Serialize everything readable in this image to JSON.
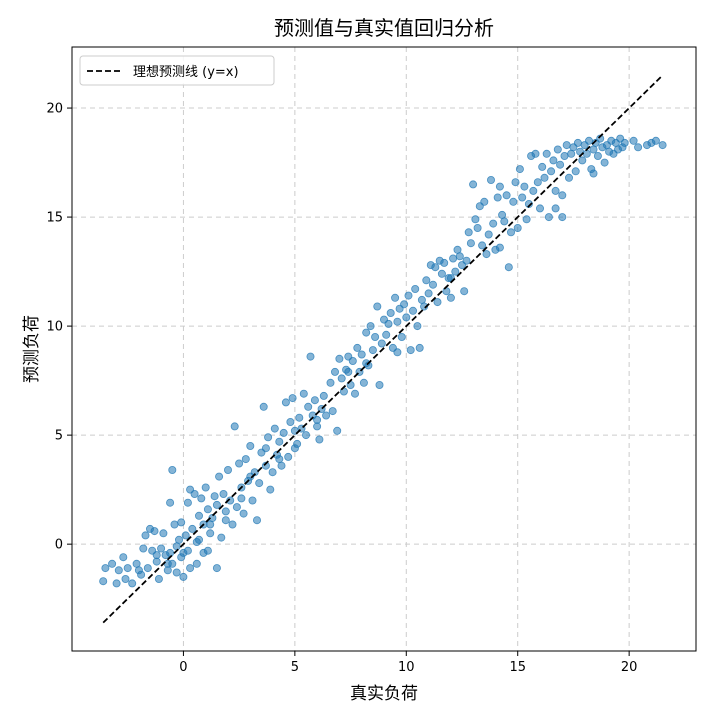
{
  "chart_data": {
    "type": "scatter",
    "title": "预测值与真实值回归分析",
    "xlabel": "真实负荷",
    "ylabel": "预测负荷",
    "xlim": [
      -5,
      23
    ],
    "ylim": [
      -4.9,
      22.8
    ],
    "xticks": [
      0,
      5,
      10,
      15,
      20
    ],
    "yticks": [
      0,
      5,
      10,
      15,
      20
    ],
    "grid": true,
    "legend": {
      "placement": "top-left",
      "label": "理想预测线 (y=x)"
    },
    "colors": {
      "points": "#1f77b4",
      "line": "#000000",
      "grid": "#cccccc"
    },
    "reference_line": {
      "x": [
        -3.6,
        21.5
      ],
      "y": [
        -3.6,
        21.5
      ],
      "style": "dashed"
    },
    "series": [
      {
        "name": "",
        "points": [
          [
            -3.6,
            -1.7
          ],
          [
            -3.5,
            -1.1
          ],
          [
            -3.2,
            -0.9
          ],
          [
            -3.0,
            -1.8
          ],
          [
            -2.9,
            -1.2
          ],
          [
            -2.7,
            -0.6
          ],
          [
            -2.5,
            -1.1
          ],
          [
            -2.3,
            -1.8
          ],
          [
            -2.1,
            -0.9
          ],
          [
            -1.9,
            -1.4
          ],
          [
            -1.8,
            -0.2
          ],
          [
            -1.7,
            0.4
          ],
          [
            -1.6,
            -1.1
          ],
          [
            -1.5,
            0.7
          ],
          [
            -1.4,
            -0.3
          ],
          [
            -1.3,
            0.6
          ],
          [
            -1.2,
            -0.8
          ],
          [
            -1.1,
            -1.6
          ],
          [
            -1.0,
            -0.2
          ],
          [
            -0.9,
            0.5
          ],
          [
            -0.8,
            -0.5
          ],
          [
            -0.7,
            -1.2
          ],
          [
            -0.6,
            -0.4
          ],
          [
            -0.6,
            1.9
          ],
          [
            -0.5,
            -0.9
          ],
          [
            -0.5,
            3.4
          ],
          [
            -0.4,
            0.9
          ],
          [
            -0.3,
            -0.1
          ],
          [
            -0.3,
            -1.3
          ],
          [
            -0.2,
            0.2
          ],
          [
            -0.1,
            -0.6
          ],
          [
            -0.1,
            1.0
          ],
          [
            0.0,
            -1.5
          ],
          [
            0.1,
            0.4
          ],
          [
            0.2,
            -0.3
          ],
          [
            0.2,
            1.9
          ],
          [
            0.3,
            2.5
          ],
          [
            0.3,
            -1.1
          ],
          [
            0.4,
            0.7
          ],
          [
            0.5,
            2.3
          ],
          [
            0.6,
            0.1
          ],
          [
            0.6,
            -0.9
          ],
          [
            0.7,
            1.3
          ],
          [
            0.8,
            2.1
          ],
          [
            0.9,
            -0.4
          ],
          [
            0.9,
            0.9
          ],
          [
            1.0,
            2.6
          ],
          [
            1.1,
            1.6
          ],
          [
            1.1,
            -0.3
          ],
          [
            1.2,
            0.5
          ],
          [
            1.3,
            1.2
          ],
          [
            1.4,
            2.2
          ],
          [
            1.5,
            1.8
          ],
          [
            1.5,
            -1.1
          ],
          [
            1.6,
            3.1
          ],
          [
            1.7,
            0.3
          ],
          [
            1.8,
            2.3
          ],
          [
            1.9,
            1.1
          ],
          [
            2.0,
            3.4
          ],
          [
            2.1,
            2.0
          ],
          [
            2.2,
            0.9
          ],
          [
            2.3,
            5.4
          ],
          [
            2.4,
            1.7
          ],
          [
            2.5,
            3.7
          ],
          [
            2.6,
            2.6
          ],
          [
            2.7,
            1.4
          ],
          [
            2.8,
            3.9
          ],
          [
            2.9,
            2.9
          ],
          [
            3.0,
            4.5
          ],
          [
            3.1,
            2.0
          ],
          [
            3.2,
            3.3
          ],
          [
            3.3,
            1.1
          ],
          [
            3.4,
            2.8
          ],
          [
            3.5,
            4.2
          ],
          [
            3.6,
            6.3
          ],
          [
            3.7,
            3.6
          ],
          [
            3.8,
            4.9
          ],
          [
            3.9,
            2.5
          ],
          [
            4.0,
            3.3
          ],
          [
            4.1,
            5.3
          ],
          [
            4.2,
            4.1
          ],
          [
            4.3,
            4.7
          ],
          [
            4.4,
            3.6
          ],
          [
            4.5,
            5.1
          ],
          [
            4.6,
            6.5
          ],
          [
            4.7,
            4.0
          ],
          [
            4.8,
            5.6
          ],
          [
            4.9,
            6.7
          ],
          [
            5.0,
            5.2
          ],
          [
            5.1,
            4.6
          ],
          [
            5.2,
            5.8
          ],
          [
            5.3,
            5.3
          ],
          [
            5.4,
            6.9
          ],
          [
            5.5,
            5.0
          ],
          [
            5.6,
            6.3
          ],
          [
            5.7,
            8.6
          ],
          [
            5.8,
            5.9
          ],
          [
            5.9,
            6.6
          ],
          [
            6.0,
            5.4
          ],
          [
            6.1,
            4.8
          ],
          [
            6.2,
            6.2
          ],
          [
            6.3,
            6.8
          ],
          [
            6.4,
            5.9
          ],
          [
            6.6,
            7.4
          ],
          [
            6.7,
            6.1
          ],
          [
            6.8,
            7.9
          ],
          [
            6.9,
            5.2
          ],
          [
            7.0,
            8.5
          ],
          [
            7.1,
            7.6
          ],
          [
            7.2,
            7.0
          ],
          [
            7.3,
            8.0
          ],
          [
            7.4,
            8.6
          ],
          [
            7.5,
            7.3
          ],
          [
            7.6,
            8.4
          ],
          [
            7.7,
            6.9
          ],
          [
            7.8,
            9.0
          ],
          [
            7.9,
            7.9
          ],
          [
            8.0,
            8.7
          ],
          [
            8.1,
            7.4
          ],
          [
            8.2,
            9.7
          ],
          [
            8.3,
            8.2
          ],
          [
            8.4,
            10.0
          ],
          [
            8.5,
            8.9
          ],
          [
            8.6,
            9.5
          ],
          [
            8.7,
            10.9
          ],
          [
            8.8,
            7.3
          ],
          [
            8.9,
            9.2
          ],
          [
            9.0,
            10.3
          ],
          [
            9.1,
            9.6
          ],
          [
            9.2,
            10.1
          ],
          [
            9.3,
            10.6
          ],
          [
            9.4,
            9.0
          ],
          [
            9.5,
            11.3
          ],
          [
            9.6,
            10.2
          ],
          [
            9.7,
            10.8
          ],
          [
            9.8,
            9.5
          ],
          [
            9.9,
            11.0
          ],
          [
            10.0,
            10.4
          ],
          [
            10.1,
            11.4
          ],
          [
            10.2,
            8.9
          ],
          [
            10.3,
            10.7
          ],
          [
            10.4,
            11.7
          ],
          [
            10.5,
            10.0
          ],
          [
            10.6,
            9.0
          ],
          [
            10.7,
            11.2
          ],
          [
            10.8,
            10.9
          ],
          [
            10.9,
            12.1
          ],
          [
            11.0,
            11.5
          ],
          [
            11.1,
            12.8
          ],
          [
            11.2,
            11.9
          ],
          [
            11.3,
            12.7
          ],
          [
            11.4,
            11.1
          ],
          [
            11.5,
            13.0
          ],
          [
            11.6,
            12.4
          ],
          [
            11.7,
            12.9
          ],
          [
            11.8,
            11.6
          ],
          [
            11.9,
            12.2
          ],
          [
            12.0,
            11.3
          ],
          [
            12.1,
            13.1
          ],
          [
            12.2,
            12.5
          ],
          [
            12.3,
            13.5
          ],
          [
            12.4,
            13.2
          ],
          [
            12.5,
            12.8
          ],
          [
            12.6,
            11.6
          ],
          [
            12.7,
            13.0
          ],
          [
            12.8,
            14.3
          ],
          [
            12.9,
            13.8
          ],
          [
            13.0,
            16.5
          ],
          [
            13.1,
            14.9
          ],
          [
            13.2,
            14.5
          ],
          [
            13.3,
            15.5
          ],
          [
            13.4,
            13.7
          ],
          [
            13.5,
            15.7
          ],
          [
            13.6,
            13.3
          ],
          [
            13.7,
            14.2
          ],
          [
            13.8,
            16.7
          ],
          [
            13.9,
            14.7
          ],
          [
            14.0,
            13.5
          ],
          [
            14.1,
            15.9
          ],
          [
            14.2,
            16.4
          ],
          [
            14.3,
            15.1
          ],
          [
            14.4,
            14.8
          ],
          [
            14.5,
            16.0
          ],
          [
            14.6,
            12.7
          ],
          [
            14.7,
            14.3
          ],
          [
            14.8,
            15.7
          ],
          [
            14.9,
            16.6
          ],
          [
            15.0,
            14.5
          ],
          [
            15.1,
            17.2
          ],
          [
            15.2,
            15.9
          ],
          [
            15.3,
            16.4
          ],
          [
            15.4,
            14.9
          ],
          [
            15.5,
            15.6
          ],
          [
            15.6,
            17.8
          ],
          [
            15.7,
            16.2
          ],
          [
            15.8,
            17.9
          ],
          [
            15.9,
            16.6
          ],
          [
            16.0,
            15.4
          ],
          [
            16.1,
            17.3
          ],
          [
            16.2,
            16.8
          ],
          [
            16.3,
            17.9
          ],
          [
            16.4,
            15.0
          ],
          [
            16.5,
            17.1
          ],
          [
            16.6,
            17.6
          ],
          [
            16.7,
            16.2
          ],
          [
            16.8,
            18.1
          ],
          [
            16.9,
            17.4
          ],
          [
            17.0,
            15.0
          ],
          [
            17.1,
            17.8
          ],
          [
            17.2,
            18.3
          ],
          [
            17.3,
            16.8
          ],
          [
            17.4,
            17.9
          ],
          [
            17.5,
            18.2
          ],
          [
            17.6,
            17.1
          ],
          [
            17.7,
            18.4
          ],
          [
            17.8,
            18.0
          ],
          [
            17.9,
            17.6
          ],
          [
            18.0,
            18.3
          ],
          [
            18.1,
            17.9
          ],
          [
            18.2,
            18.5
          ],
          [
            18.3,
            17.2
          ],
          [
            18.4,
            18.1
          ],
          [
            18.5,
            18.4
          ],
          [
            18.6,
            17.8
          ],
          [
            18.7,
            18.6
          ],
          [
            18.8,
            18.2
          ],
          [
            18.9,
            17.5
          ],
          [
            19.0,
            18.3
          ],
          [
            19.1,
            18.0
          ],
          [
            19.2,
            18.5
          ],
          [
            19.3,
            17.9
          ],
          [
            19.4,
            18.4
          ],
          [
            19.5,
            18.1
          ],
          [
            19.6,
            18.6
          ],
          [
            19.7,
            18.2
          ],
          [
            19.8,
            18.4
          ],
          [
            20.2,
            18.5
          ],
          [
            20.4,
            18.2
          ],
          [
            20.8,
            18.3
          ],
          [
            21.0,
            18.4
          ],
          [
            21.2,
            18.5
          ],
          [
            21.5,
            18.3
          ],
          [
            18.4,
            17.0
          ],
          [
            17.0,
            16.0
          ],
          [
            16.7,
            15.4
          ],
          [
            14.2,
            13.6
          ],
          [
            12.0,
            12.2
          ],
          [
            9.6,
            8.8
          ],
          [
            8.2,
            8.3
          ],
          [
            7.4,
            7.9
          ],
          [
            6.0,
            5.7
          ],
          [
            5.0,
            4.4
          ],
          [
            4.3,
            3.9
          ],
          [
            3.7,
            4.4
          ],
          [
            3.0,
            3.1
          ],
          [
            2.6,
            2.1
          ],
          [
            1.9,
            1.5
          ],
          [
            1.2,
            0.9
          ],
          [
            0.7,
            0.2
          ],
          [
            0.0,
            -0.4
          ],
          [
            -0.7,
            -0.9
          ],
          [
            -1.2,
            -0.5
          ],
          [
            -2.0,
            -1.2
          ],
          [
            -2.6,
            -1.6
          ]
        ]
      }
    ]
  }
}
